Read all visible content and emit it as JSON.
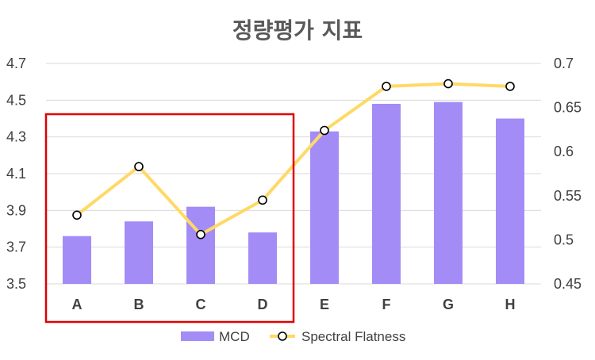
{
  "chart_data": {
    "type": "bar",
    "title": "정량평가 지표",
    "categories": [
      "A",
      "B",
      "C",
      "D",
      "E",
      "F",
      "G",
      "H"
    ],
    "series": [
      {
        "name": "MCD",
        "type": "bar",
        "axis": "left",
        "color": "#a48cf7",
        "values": [
          3.76,
          3.84,
          3.92,
          3.78,
          4.33,
          4.48,
          4.49,
          4.4
        ]
      },
      {
        "name": "Spectral Flatness",
        "type": "line",
        "axis": "right",
        "color": "#ffd966",
        "marker": "hollow-circle",
        "values": [
          0.528,
          0.583,
          0.506,
          0.545,
          0.624,
          0.674,
          0.677,
          0.674
        ]
      }
    ],
    "y_left": {
      "ylim": [
        3.5,
        4.7
      ],
      "ticks": [
        "3.5",
        "3.7",
        "3.9",
        "4.1",
        "4.3",
        "4.5",
        "4.7"
      ]
    },
    "y_right": {
      "ylim": [
        0.45,
        0.7
      ],
      "ticks": [
        "0.45",
        "0.5",
        "0.55",
        "0.6",
        "0.65",
        "0.7"
      ]
    },
    "grid": true,
    "legend_position": "bottom",
    "highlight": {
      "categories": [
        "A",
        "B",
        "C",
        "D"
      ],
      "color": "#e00000"
    }
  }
}
